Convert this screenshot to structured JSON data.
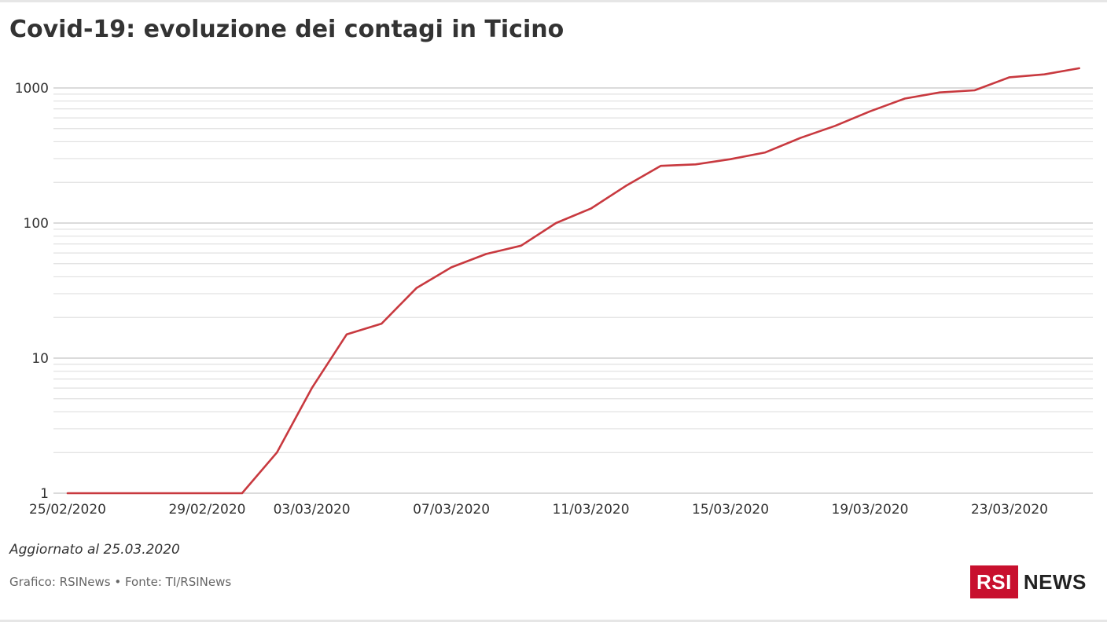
{
  "header": {
    "title": "Covid-19: evoluzione dei contagi in Ticino"
  },
  "footer": {
    "updated": "Aggiornato al 25.03.2020",
    "credits": "Grafico: RSINews • Fonte: TI/RSINews"
  },
  "logo": {
    "rsi": "RSI",
    "news": "NEWS",
    "brand_color": "#c8102e"
  },
  "chart_data": {
    "type": "line",
    "title": "Covid-19: evoluzione dei contagi in Ticino",
    "xlabel": "",
    "ylabel": "",
    "y_scale": "log",
    "ylim": [
      1,
      1500
    ],
    "y_ticks": [
      1,
      10,
      100,
      1000
    ],
    "y_tick_labels": [
      "1",
      "10",
      "100",
      "1000"
    ],
    "x_tick_labels": [
      "25/02/2020",
      "29/02/2020",
      "03/03/2020",
      "07/03/2020",
      "11/03/2020",
      "15/03/2020",
      "19/03/2020",
      "23/03/2020"
    ],
    "grid": true,
    "legend": "none",
    "line_color": "#c8393f",
    "series": [
      {
        "x": [
          "25/02/2020",
          "26/02/2020",
          "27/02/2020",
          "28/02/2020",
          "29/02/2020",
          "01/03/2020",
          "02/03/2020",
          "03/03/2020",
          "04/03/2020",
          "05/03/2020",
          "06/03/2020",
          "07/03/2020",
          "08/03/2020",
          "09/03/2020",
          "10/03/2020",
          "11/03/2020",
          "12/03/2020",
          "13/03/2020",
          "14/03/2020",
          "15/03/2020",
          "16/03/2020",
          "17/03/2020",
          "18/03/2020",
          "19/03/2020",
          "20/03/2020",
          "21/03/2020",
          "22/03/2020",
          "23/03/2020",
          "24/03/2020",
          "25/03/2020"
        ],
        "values": [
          1,
          1,
          1,
          1,
          1,
          1,
          2,
          6,
          15,
          18,
          33,
          47,
          59,
          68,
          100,
          128,
          188,
          265,
          272,
          297,
          333,
          426,
          524,
          671,
          835,
          927,
          960,
          1200,
          1260,
          1400
        ]
      }
    ]
  }
}
